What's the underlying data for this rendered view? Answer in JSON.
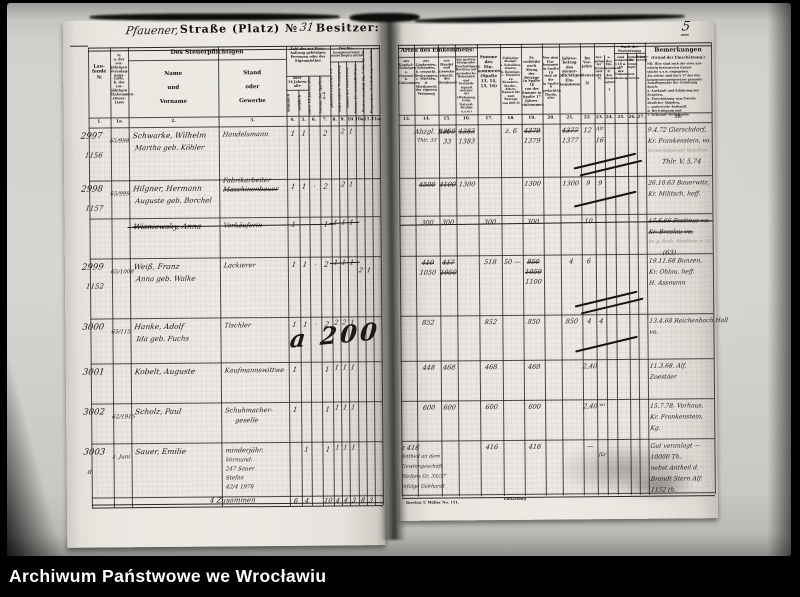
{
  "watermark": "Archiwum Państwowe we Wrocławiu",
  "page_number": "5",
  "left_page": {
    "title": {
      "street_hw": "Pfauener,",
      "street_label": "Straße (Platz) №",
      "street_no": "31",
      "besitzer_label": "Besitzer:"
    },
    "headers": {
      "laufende": "Lau-\nfende\n№",
      "journal": "№\na. der vor-\njährigen\nVeranlag-\nungs-Liste,\nb. der vor-\njährigen\nEinkommen-\nsteuer-Liste",
      "group_person": "Des Steuerpflichtigen",
      "name": "Name\nund\nVorname",
      "stand": "Stand\noder\nGewerbe",
      "group_zahl": "Zahl der zur Haus-\nhaltung gehörigen\nPersonen oder der\nEigenmiether",
      "ueber14": "über\n14 Jahren\nalte",
      "maennlich": "männlich",
      "weiblich": "weiblich",
      "unter14": "unter 14 Jahren alte",
      "summe46": "Summe der Spalten 4—6",
      "group_frei": "Der Ein-\nkommensteuer\nunterliegen nicht",
      "col8": "gänzlich steuerfrei §3",
      "col9": "wegen anderw. Veranlagung",
      "col10": "Summe der steuerfreien",
      "col10a": "Summe der steuerpflichtigen",
      "col11": "Werden veranlagt (Sp. 7 abz. Sp. 10)",
      "col11a": "Eingezogene Haushaltungs-Vorstände"
    },
    "col_numbers": [
      "1.",
      "1a.",
      "2.",
      "3.",
      "4.",
      "5.",
      "6.",
      "7.",
      "8.",
      "9.",
      "10.",
      "10a.",
      "11.",
      "11a."
    ],
    "rows": [
      {
        "no": "2997",
        "no_b": "65/998",
        "no_c": "1156",
        "name": "Schwarke, Wilhelm",
        "spouse": "Martha geb. Köhler",
        "occupation": "Handelsmann",
        "counts": {
          "c4": "1",
          "c5": "1",
          "c7": "2"
        },
        "tallies": {
          "c9": "2",
          "c10": "1"
        }
      },
      {
        "no": "2998",
        "no_b": "65/999",
        "no_c": "1157",
        "name": "Hilgner, Hermann",
        "occupation": "Fabrikarbeiter",
        "occupation_struck": "Maschinenbauer",
        "spouse": "Auguste geb. Borchel",
        "counts": {
          "c4": "1",
          "c5": "1",
          "c6": "·",
          "c7": "2"
        },
        "tallies": {
          "c9": "2",
          "c10": "1"
        }
      },
      {
        "struck": true,
        "name": "Wisniewsky, Anna",
        "occupation": "Verkäuferin",
        "counts": {
          "c4": "1",
          "c7": "1"
        },
        "tallies": {
          "c8": "1",
          "c9": "1",
          "c10": "1"
        },
        "tallies_struck": true
      },
      {
        "no": "2999",
        "no_b": "65/1008",
        "no_c": "1152",
        "name": "Weiß, Franz",
        "spouse": "Anna geb. Walke",
        "occupation": "Lackierer",
        "counts": {
          "c4": "1",
          "c5": "1",
          "c6": "·",
          "c7": "2"
        },
        "tallies": {
          "c8": "1",
          "c9": "1",
          "c10": "1"
        },
        "tallies_struck": true,
        "tallies2": {
          "c10a": "2",
          "c11": "1"
        }
      },
      {
        "no": "3000",
        "no_b": "65/115",
        "name": "Hanke, Adolf",
        "spouse": "Ida geb. Fuchs",
        "occupation": "Tischler",
        "counts": {
          "c4": "1",
          "c5": "1",
          "c6": "·",
          "c7": "2"
        },
        "tallies": {
          "c8": "2",
          "c9": "2",
          "c10": "1"
        },
        "scrawl": "a 200"
      },
      {
        "no": "3001",
        "name": "Kobelt, Auguste",
        "occupation": "Kaufmannswittwe",
        "counts": {
          "c4": "1",
          "c7": "1"
        },
        "tallies": {
          "c8": "1",
          "c9": "1",
          "c10": "1"
        }
      },
      {
        "no": "3002",
        "no_b": "62/1915",
        "name": "Scholz, Paul",
        "occupation": "Schuhmacher-",
        "occupation2": "geselle",
        "counts": {
          "c4": "1",
          "c7": "1"
        },
        "tallies": {
          "c8": "1",
          "c9": "1",
          "c10": "1"
        }
      },
      {
        "no": "3003",
        "no_b": "z. Juni",
        "no_c": "a",
        "name": "Sauer, Emilie",
        "occupation": "minderjähr.",
        "extra": [
          "Vormund:",
          "247 Sauer",
          "Stefan",
          "42/4 1976"
        ],
        "counts": {
          "c5": "1",
          "c7": "1"
        },
        "tallies": {
          "c8": "1",
          "c9": "1",
          "c10": "1"
        }
      }
    ],
    "sum_row": {
      "label": "4 Zusammen",
      "values": {
        "c4": "6",
        "c5": "4",
        "c7": "10",
        "c8": "4",
        "c9": "4",
        "c10": "3",
        "c10a": "8",
        "c11": "3"
      }
    }
  },
  "right_page": {
    "headers": {
      "group_arten": "Arten des Einkommens:",
      "c13": "aus\nKapital-\nVermögen\na.\nVerzinsl.\nb.\nEinkommen",
      "c14": "aus\nLändereien,\nGebäuden,\nb. verpacht.\nBesitzungen,\nc. Miethen,\nd. Miethwerth\nder eigenen\nWohnung",
      "c15": "aus\nHandel\nund\nGewerbe\neinschl.\ndes\nBergbaues",
      "c16": "aus gewinn-\nbringender\nBeschäftigung,\nRechten auf\nperiodische\nHebungen und\nVortheile\nirgend welcher\nArt (Wohnung,\nGeld, Natural-\nBezüge u.s.w.)",
      "c17": "Summe\ndes\nEin-\nkommens\n(Spalte\n13, 14,\n15, 16)",
      "c18": "Zulässige\nAbzüge:\na. Schulden-\nzinsen,\nb. Beiträge,\nc. Prämien zu\nKranken-,\nSterbe-,\nAlters-\nKassen bis\nzum Betrage\nvon 600 ℳ",
      "c19": "Es\nverbleibt\nnach Abzug\nder Beträge\nin Spalte 18\nvon der\nSumme in\nSpalte 17\nJahres-\neinkommen",
      "c20": "Von dem\nEin-\nkommen\nin Spalte 19\nsind ab die\nin Spalte 6\ngedachten\nTheile,\nalso",
      "c21": "Jahres-\nbetrag\ndes\nsteuer-\npflichtigen\nEin-\nkommens",
      "c22": "Im\nVor-\njahre\n\nSteuersatz\n\nℳ",
      "c23": "Ver-\nanlag-\nter\nSteuer-\nsatz\n\nℳ",
      "c24": "a. des\nEin-\nkommens\nb. des\nSteuer-\nsatzes\n\n₰",
      "group_fest": "Nach der Festsetzung",
      "c25": "sind\nfestgestellt\n§ 19 u. 29\ndes\nEinkommen-\nsteuergesetzes",
      "c26": "demnächst\nder\nveran-\nlagte",
      "c27": "Steuer-\nbetrag",
      "rem_title": "Bemerkungen",
      "rem_sub": "(Grund der Einschätzung.)",
      "rem_body": "NB. Hier sind auch die etwa aus-\nwärtig besteuerten Grund-\nstücke u.s.w. angegeben.\nAls solche sind bei § 17 des Ein-\nkommensteuergesetzes genannt:\nAnhaltspunkte der Schätzung durch:\na. Auskunft und Erklärung des\nZensiten,\nb. Einschätzung zum Zwecke\nähnlicher Abgaben,\nc. anderweite Auskunft,\nd. Berichtigung und\ne. bekannte Verhältnisse."
    },
    "col_numbers": [
      "13.",
      "14.",
      "15.",
      "16.",
      "17.",
      "18.",
      "19.",
      "20.",
      "21.",
      "22.",
      "23.",
      "24.",
      "25.",
      "26.",
      "27.",
      "28."
    ],
    "rows": [
      {
        "cells": [
          [
            "c14",
            "Abzgl. 1 rt",
            0,
            ""
          ],
          [
            "c14",
            "Thlr. 33",
            1,
            "m"
          ],
          [
            "c15",
            "4350",
            0,
            "s"
          ],
          [
            "c16",
            "4383",
            0,
            "s"
          ],
          [
            "c15",
            "33",
            1,
            ""
          ],
          [
            "c16",
            "1383",
            1,
            ""
          ],
          [
            "c18",
            "z. 6",
            0,
            ""
          ],
          [
            "c19",
            "4379",
            0,
            "s"
          ],
          [
            "c19",
            "1379",
            1,
            ""
          ],
          [
            "c21",
            "4377",
            0,
            "s"
          ],
          [
            "c21",
            "1377",
            1,
            ""
          ],
          [
            "c22",
            "12",
            0,
            ""
          ],
          [
            "c23",
            "Alt",
            0,
            "m"
          ],
          [
            "c23",
            "16",
            1,
            ""
          ]
        ],
        "slash": 2,
        "remarks": [
          "9.4.72 Gierschdorf,",
          "Kr. Frankenstein, vo."
        ],
        "remarks_faint": [
          "Gemeindesteuer bezahlen."
        ],
        "remarks2": [
          "Thlr. V.  5,74"
        ]
      },
      {
        "cells": [
          [
            "c14",
            "4500",
            0,
            "s"
          ],
          [
            "c15",
            "4100",
            0,
            "s"
          ],
          [
            "c16",
            "1300",
            0,
            ""
          ],
          [
            "c19",
            "1300",
            0,
            ""
          ],
          [
            "c21",
            "1300",
            0,
            ""
          ],
          [
            "c22",
            "9",
            0,
            ""
          ],
          [
            "c23",
            "9",
            0,
            ""
          ]
        ],
        "slash": 1,
        "remarks": [
          "26.10.63 Bauerwitz,",
          "Kr. Militsch, heff."
        ]
      },
      {
        "struck": true,
        "cells": [
          [
            "c14",
            "300",
            0,
            ""
          ],
          [
            "c15",
            "300",
            0,
            ""
          ],
          [
            "c17",
            "300",
            0,
            ""
          ],
          [
            "c19",
            "300",
            0,
            ""
          ],
          [
            "c22",
            "10",
            0,
            ""
          ]
        ],
        "remarks": [
          "17.6.66 Festinus vo.",
          "Kr. Breslau vo."
        ],
        "remarks_faint": [
          "br. g. Barb. Westheim p. 101"
        ],
        "remarks2": [
          "(63)"
        ]
      },
      {
        "cells": [
          [
            "c14",
            "410",
            0,
            "s"
          ],
          [
            "c15",
            "417",
            0,
            "s"
          ],
          [
            "c14",
            "1050",
            1,
            ""
          ],
          [
            "c15",
            "1050",
            1,
            "s"
          ],
          [
            "c17",
            "518",
            0,
            ""
          ],
          [
            "c18",
            "50 —",
            0,
            ""
          ],
          [
            "c19",
            "850",
            0,
            "s"
          ],
          [
            "c19",
            "1050",
            1,
            "s"
          ],
          [
            "c19",
            "1100",
            2,
            ""
          ],
          [
            "c21",
            "4",
            0,
            ""
          ],
          [
            "c22",
            "6",
            0,
            ""
          ]
        ],
        "slash": 2,
        "remarks": [
          "19.11.68 Bunzen,",
          "Kr. Ohlau, heff.",
          "H. Assmann"
        ]
      },
      {
        "cells": [
          [
            "c14",
            "852",
            0,
            ""
          ],
          [
            "c17",
            "852",
            0,
            ""
          ],
          [
            "c19",
            "850",
            0,
            ""
          ],
          [
            "c21",
            "850",
            0,
            ""
          ],
          [
            "c22",
            "4",
            0,
            ""
          ],
          [
            "c23",
            "4",
            0,
            ""
          ]
        ],
        "slash": 1,
        "remarks": [
          "13.4.68 Reichenbach Hall",
          "vo."
        ]
      },
      {
        "cells": [
          [
            "c14",
            "448",
            0,
            ""
          ],
          [
            "c15",
            "468",
            0,
            ""
          ],
          [
            "c17",
            "468",
            0,
            ""
          ],
          [
            "c19",
            "468",
            0,
            ""
          ],
          [
            "c22",
            "2,40",
            0,
            ""
          ]
        ],
        "remarks": [
          "11.3.68. Alf.",
          "Zoestäer"
        ]
      },
      {
        "cells": [
          [
            "c14",
            "600",
            0,
            ""
          ],
          [
            "c15",
            "600",
            0,
            ""
          ],
          [
            "c17",
            "600",
            0,
            ""
          ],
          [
            "c19",
            "600",
            0,
            ""
          ],
          [
            "c22",
            "2,40",
            0,
            ""
          ],
          [
            "c23",
            "vo",
            0,
            "m"
          ]
        ],
        "remarks": [
          "15.7.78. Vorhaus,",
          "Kr. Frankenstein,",
          "Kg."
        ]
      },
      {
        "cells": [
          [
            "c13",
            "z 416",
            0,
            ""
          ],
          [
            "c13",
            "Antheil an dem",
            1,
            "m"
          ],
          [
            "c13",
            "Gewinngeschäft",
            2,
            "m"
          ],
          [
            "c13",
            "Stefans Gr. 35/37",
            3,
            "m"
          ],
          [
            "c13",
            "infolge Gebhardt",
            4,
            "m"
          ],
          [
            "c17",
            "416",
            0,
            ""
          ],
          [
            "c19",
            "416",
            0,
            ""
          ],
          [
            "c22",
            "—",
            0,
            ""
          ],
          [
            "c23",
            "für",
            1,
            "m"
          ]
        ],
        "remarks": [
          "Gut veranlagt —",
          "10000 Th.",
          "nebst Antheil d.",
          "Brandt Stern Alf.",
          "1152 th."
        ]
      }
    ],
    "footer": {
      "printer_mark": "Breslau T. Müller No. 151.",
      "settlement_label": "Entlastung"
    }
  }
}
